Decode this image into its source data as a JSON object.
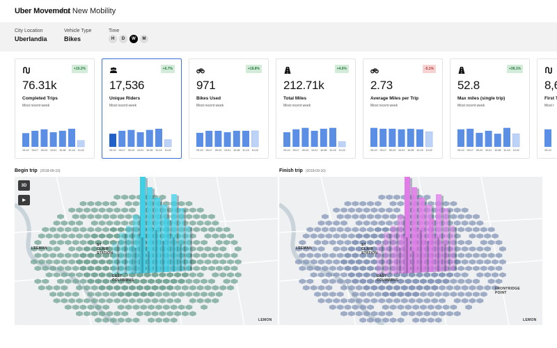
{
  "header": {
    "brand": "Uber Movement",
    "subtitle": "for New Mobility"
  },
  "filters": {
    "city": {
      "label": "City Location",
      "value": "Uberlandia"
    },
    "vehicle": {
      "label": "Vehicle Type",
      "value": "Bikes"
    },
    "time": {
      "label": "Time",
      "options": [
        "H",
        "D",
        "W",
        "M"
      ],
      "selected": "W"
    }
  },
  "cards": [
    {
      "icon": "route-icon",
      "badge": "+10.2%",
      "badge_type": "positive",
      "value": "76.31k",
      "label": "Completed Trips",
      "sub": "Most recent week",
      "bars": [
        0.47,
        0.55,
        0.6,
        0.5,
        0.55,
        0.62,
        0.22
      ],
      "colors": [
        "#5b8fe6",
        "#5b8fe6",
        "#5b8fe6",
        "#5b8fe6",
        "#5b8fe6",
        "#5b8fe6",
        "#bcd3f7"
      ]
    },
    {
      "icon": "riders-icon",
      "badge": "+6.7%",
      "badge_type": "positive",
      "value": "17,536",
      "label": "Unique Riders",
      "sub": "Most recent week",
      "bars": [
        0.45,
        0.55,
        0.58,
        0.5,
        0.58,
        0.62,
        0.25
      ],
      "colors": [
        "#1e5fc9",
        "#5b8fe6",
        "#5b8fe6",
        "#5b8fe6",
        "#5b8fe6",
        "#5b8fe6",
        "#bcd3f7"
      ],
      "selected": true
    },
    {
      "icon": "bike-icon",
      "badge": "+18.8%",
      "badge_type": "positive",
      "value": "971",
      "label": "Bikes Used",
      "sub": "Most recent week",
      "bars": [
        0.48,
        0.55,
        0.55,
        0.5,
        0.55,
        0.55,
        0.55
      ],
      "colors": [
        "#5b8fe6",
        "#5b8fe6",
        "#5b8fe6",
        "#5b8fe6",
        "#5b8fe6",
        "#5b8fe6",
        "#bcd3f7"
      ]
    },
    {
      "icon": "road-icon",
      "badge": "+4.6%",
      "badge_type": "positive",
      "value": "212.71k",
      "label": "Total Miles",
      "sub": "Most recent week",
      "bars": [
        0.5,
        0.6,
        0.65,
        0.55,
        0.62,
        0.65,
        0.18
      ],
      "colors": [
        "#5b8fe6",
        "#5b8fe6",
        "#5b8fe6",
        "#5b8fe6",
        "#5b8fe6",
        "#5b8fe6",
        "#bcd3f7"
      ]
    },
    {
      "icon": "bike-icon",
      "badge": "-5.1%",
      "badge_type": "negative",
      "value": "2.73",
      "label": "Average Miles per Trip",
      "sub": "Most recent week",
      "bars": [
        0.65,
        0.62,
        0.62,
        0.6,
        0.62,
        0.6,
        0.52
      ],
      "colors": [
        "#5b8fe6",
        "#5b8fe6",
        "#5b8fe6",
        "#5b8fe6",
        "#5b8fe6",
        "#5b8fe6",
        "#bcd3f7"
      ]
    },
    {
      "icon": "road-icon",
      "badge": "+38.1%",
      "badge_type": "positive",
      "value": "52.8",
      "label": "Max miles (single trip)",
      "sub": "Most recent week",
      "bars": [
        0.6,
        0.62,
        0.48,
        0.55,
        0.45,
        0.65,
        0.45
      ],
      "colors": [
        "#5b8fe6",
        "#5b8fe6",
        "#5b8fe6",
        "#5b8fe6",
        "#5b8fe6",
        "#5b8fe6",
        "#bcd3f7"
      ]
    },
    {
      "icon": "route-icon",
      "badge": "",
      "badge_type": "positive",
      "value": "8,6",
      "label": "First T",
      "sub": "Most r",
      "bars": [
        0.6
      ],
      "colors": [
        "#5b8fe6"
      ]
    }
  ],
  "chart_ticks": [
    "09-10",
    "09-17",
    "09-24",
    "10-01",
    "10-08",
    "10-15",
    "10-22"
  ],
  "maps": [
    {
      "title": "Begin trip",
      "date": "(2018-09-10)",
      "base_color": "#6a9e8e",
      "peak_color": "#3fd0e8",
      "labels": [
        "LEEMAN",
        "ST\nCLAIR\nSTATION",
        "EAST\nCOLUMBUS",
        "LEMON"
      ],
      "buttons": [
        "3D",
        "▶"
      ]
    },
    {
      "title": "Finish trip",
      "date": "(2018-09-10)",
      "base_color": "#7d8fb2",
      "peak_color": "#e07be8",
      "labels": [
        "LEEMAN",
        "ST\nCLAIR\nSTATION",
        "EAST\nCOLUMBUS",
        "FRONTRIDGE\nPOINT",
        "LEMON"
      ]
    }
  ]
}
